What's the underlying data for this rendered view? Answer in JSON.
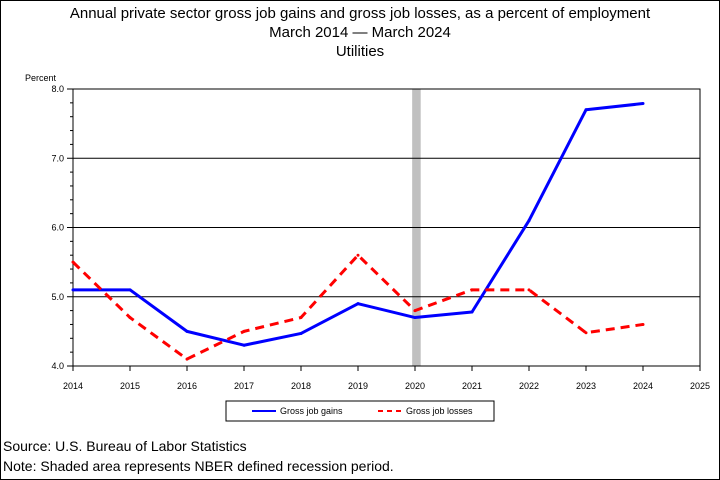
{
  "titles": {
    "line1": "Annual private sector gross job gains and gross job losses, as a percent of employment",
    "line2": "March 2014 — March 2024",
    "line3": "Utilities"
  },
  "footer": {
    "source": "Source: U.S. Bureau of Labor Statistics",
    "note": "Note: Shaded area represents NBER defined recession period."
  },
  "chart_data": {
    "type": "line",
    "ylabel": "Percent",
    "xlabel": "",
    "xlim": [
      2014,
      2025
    ],
    "ylim": [
      4.0,
      8.0
    ],
    "x_ticks": [
      "2014",
      "2015",
      "2016",
      "2017",
      "2018",
      "2019",
      "2020",
      "2021",
      "2022",
      "2023",
      "2024",
      "2025"
    ],
    "y_ticks": [
      "4.0",
      "5.0",
      "6.0",
      "7.0",
      "8.0"
    ],
    "grid": "horizontal",
    "recession": {
      "start": 2019.95,
      "end": 2020.1
    },
    "legend_position": "bottom-center",
    "x": [
      2014,
      2015,
      2016,
      2017,
      2018,
      2019,
      2020,
      2021,
      2022,
      2023,
      2024
    ],
    "series": [
      {
        "name": "Gross job gains",
        "color": "#0000ff",
        "style": "solid",
        "values": [
          5.1,
          5.1,
          4.5,
          4.3,
          4.47,
          4.9,
          4.7,
          4.78,
          6.1,
          7.7,
          7.79
        ]
      },
      {
        "name": "Gross job losses",
        "color": "#ff0000",
        "style": "dashed",
        "values": [
          5.5,
          4.7,
          4.1,
          4.5,
          4.7,
          5.6,
          4.8,
          5.1,
          5.1,
          4.48,
          4.6
        ]
      }
    ]
  }
}
